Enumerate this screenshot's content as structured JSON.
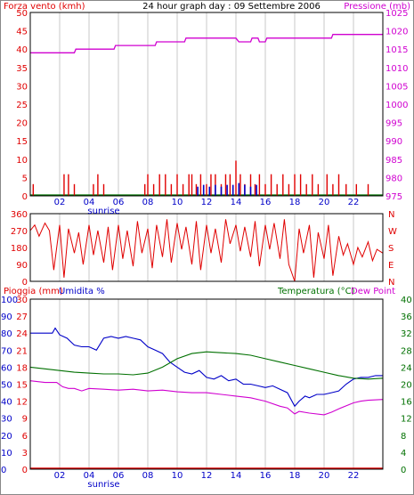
{
  "colors": {
    "red": "#e00000",
    "blue": "#0000c8",
    "magenta": "#d000d0",
    "green": "#007000",
    "grid": "#c8c8c8",
    "frame": "#000000",
    "rain": "#e00000"
  },
  "panel1": {
    "title": "24 hour graph day : 09 Settembre 2006",
    "left_label": "Forza vento (kmh)",
    "right_label": "Pressione (mb)"
  },
  "panel3": {
    "left_label_rain": "Pioggia (mm)",
    "left_label_hum": "Umidita %",
    "right_label_temp": "Temperatura (°C)",
    "right_label_dew": "Dew Point"
  },
  "sunrise_label": "sunrise",
  "chart_data": [
    {
      "type": "bar",
      "name": "wind-and-pressure",
      "x_ticks": [
        "02",
        "04",
        "06",
        "08",
        "10",
        "12",
        "14",
        "16",
        "18",
        "20",
        "22"
      ],
      "x_range_hours": [
        0,
        24
      ],
      "y_left": {
        "ticks": [
          0,
          5,
          10,
          15,
          20,
          25,
          30,
          35,
          40,
          45,
          50
        ],
        "range": [
          0,
          50
        ]
      },
      "y_right": {
        "ticks": [
          975,
          980,
          985,
          990,
          995,
          1000,
          1005,
          1010,
          1015,
          1020,
          1025
        ],
        "range": [
          975,
          1025
        ]
      },
      "sunrise_hour": 5.0,
      "wind_speed": [
        {
          "h": 0.2,
          "v": 3.2
        },
        {
          "h": 2.3,
          "v": 5.9
        },
        {
          "h": 2.6,
          "v": 5.9
        },
        {
          "h": 3.0,
          "v": 3.2
        },
        {
          "h": 4.3,
          "v": 3.2
        },
        {
          "h": 4.6,
          "v": 5.9
        },
        {
          "h": 5.0,
          "v": 3.2
        },
        {
          "h": 7.8,
          "v": 3.2
        },
        {
          "h": 8.0,
          "v": 5.9
        },
        {
          "h": 8.4,
          "v": 3.2
        },
        {
          "h": 8.8,
          "v": 5.9
        },
        {
          "h": 9.2,
          "v": 5.9
        },
        {
          "h": 9.6,
          "v": 3.2
        },
        {
          "h": 10.0,
          "v": 5.9
        },
        {
          "h": 10.4,
          "v": 3.2
        },
        {
          "h": 10.8,
          "v": 5.9
        },
        {
          "h": 11.0,
          "v": 5.9
        },
        {
          "h": 11.3,
          "v": 3.2
        },
        {
          "h": 11.6,
          "v": 5.9
        },
        {
          "h": 12.0,
          "v": 3.2
        },
        {
          "h": 12.3,
          "v": 5.9
        },
        {
          "h": 12.6,
          "v": 5.9
        },
        {
          "h": 13.0,
          "v": 3.2
        },
        {
          "h": 13.3,
          "v": 5.9
        },
        {
          "h": 13.6,
          "v": 5.9
        },
        {
          "h": 14.0,
          "v": 9.6
        },
        {
          "h": 14.3,
          "v": 5.9
        },
        {
          "h": 14.6,
          "v": 3.2
        },
        {
          "h": 15.0,
          "v": 5.9
        },
        {
          "h": 15.3,
          "v": 3.2
        },
        {
          "h": 15.6,
          "v": 5.9
        },
        {
          "h": 16.0,
          "v": 3.2
        },
        {
          "h": 16.4,
          "v": 5.9
        },
        {
          "h": 16.8,
          "v": 3.2
        },
        {
          "h": 17.2,
          "v": 5.9
        },
        {
          "h": 17.6,
          "v": 3.2
        },
        {
          "h": 18.0,
          "v": 5.9
        },
        {
          "h": 18.4,
          "v": 5.9
        },
        {
          "h": 18.8,
          "v": 3.2
        },
        {
          "h": 19.2,
          "v": 5.9
        },
        {
          "h": 19.6,
          "v": 3.2
        },
        {
          "h": 20.2,
          "v": 5.9
        },
        {
          "h": 20.6,
          "v": 3.2
        },
        {
          "h": 21.0,
          "v": 5.9
        },
        {
          "h": 21.5,
          "v": 3.2
        },
        {
          "h": 22.2,
          "v": 3.2
        },
        {
          "h": 23.0,
          "v": 3.2
        }
      ],
      "wind_gust": [
        {
          "h": 11.8,
          "v": 3.0
        },
        {
          "h": 12.2,
          "v": 2.5
        },
        {
          "h": 12.6,
          "v": 3.0
        },
        {
          "h": 13.0,
          "v": 2.5
        },
        {
          "h": 13.4,
          "v": 3.0
        },
        {
          "h": 13.8,
          "v": 3.0
        },
        {
          "h": 14.2,
          "v": 3.5
        },
        {
          "h": 14.6,
          "v": 3.0
        },
        {
          "h": 15.0,
          "v": 2.5
        },
        {
          "h": 15.4,
          "v": 3.0
        },
        {
          "h": 11.4,
          "v": 2.5
        }
      ],
      "pressure": [
        {
          "h": 0.0,
          "v": 1014
        },
        {
          "h": 3.0,
          "v": 1014
        },
        {
          "h": 3.1,
          "v": 1015
        },
        {
          "h": 5.7,
          "v": 1015
        },
        {
          "h": 5.8,
          "v": 1016
        },
        {
          "h": 8.5,
          "v": 1016
        },
        {
          "h": 8.6,
          "v": 1017
        },
        {
          "h": 10.5,
          "v": 1017
        },
        {
          "h": 10.6,
          "v": 1018
        },
        {
          "h": 14.0,
          "v": 1018
        },
        {
          "h": 14.2,
          "v": 1017
        },
        {
          "h": 15.0,
          "v": 1017
        },
        {
          "h": 15.1,
          "v": 1018
        },
        {
          "h": 15.5,
          "v": 1018
        },
        {
          "h": 15.6,
          "v": 1017
        },
        {
          "h": 16.0,
          "v": 1017
        },
        {
          "h": 16.1,
          "v": 1018
        },
        {
          "h": 20.5,
          "v": 1018
        },
        {
          "h": 20.6,
          "v": 1019
        },
        {
          "h": 24.0,
          "v": 1019
        }
      ]
    },
    {
      "type": "line",
      "name": "wind-direction",
      "y_ticks_left": [
        0,
        90,
        180,
        270,
        360
      ],
      "y_range": [
        0,
        360
      ],
      "y_right_labels": [
        "N",
        "W",
        "S",
        "E",
        "N"
      ],
      "direction": [
        {
          "h": 0.0,
          "v": 270
        },
        {
          "h": 0.3,
          "v": 300
        },
        {
          "h": 0.6,
          "v": 240
        },
        {
          "h": 1.0,
          "v": 310
        },
        {
          "h": 1.3,
          "v": 270
        },
        {
          "h": 1.6,
          "v": 60
        },
        {
          "h": 2.0,
          "v": 300
        },
        {
          "h": 2.3,
          "v": 20
        },
        {
          "h": 2.6,
          "v": 280
        },
        {
          "h": 3.0,
          "v": 150
        },
        {
          "h": 3.3,
          "v": 260
        },
        {
          "h": 3.6,
          "v": 90
        },
        {
          "h": 4.0,
          "v": 300
        },
        {
          "h": 4.3,
          "v": 140
        },
        {
          "h": 4.6,
          "v": 270
        },
        {
          "h": 5.0,
          "v": 100
        },
        {
          "h": 5.3,
          "v": 290
        },
        {
          "h": 5.6,
          "v": 60
        },
        {
          "h": 6.0,
          "v": 300
        },
        {
          "h": 6.3,
          "v": 120
        },
        {
          "h": 6.6,
          "v": 270
        },
        {
          "h": 7.0,
          "v": 80
        },
        {
          "h": 7.3,
          "v": 320
        },
        {
          "h": 7.6,
          "v": 150
        },
        {
          "h": 8.0,
          "v": 280
        },
        {
          "h": 8.3,
          "v": 70
        },
        {
          "h": 8.6,
          "v": 300
        },
        {
          "h": 9.0,
          "v": 130
        },
        {
          "h": 9.3,
          "v": 330
        },
        {
          "h": 9.6,
          "v": 100
        },
        {
          "h": 10.0,
          "v": 310
        },
        {
          "h": 10.3,
          "v": 170
        },
        {
          "h": 10.6,
          "v": 290
        },
        {
          "h": 11.0,
          "v": 90
        },
        {
          "h": 11.3,
          "v": 320
        },
        {
          "h": 11.6,
          "v": 60
        },
        {
          "h": 12.0,
          "v": 300
        },
        {
          "h": 12.3,
          "v": 150
        },
        {
          "h": 12.6,
          "v": 280
        },
        {
          "h": 13.0,
          "v": 100
        },
        {
          "h": 13.3,
          "v": 330
        },
        {
          "h": 13.6,
          "v": 200
        },
        {
          "h": 14.0,
          "v": 300
        },
        {
          "h": 14.3,
          "v": 160
        },
        {
          "h": 14.6,
          "v": 290
        },
        {
          "h": 15.0,
          "v": 130
        },
        {
          "h": 15.3,
          "v": 320
        },
        {
          "h": 15.6,
          "v": 80
        },
        {
          "h": 16.0,
          "v": 300
        },
        {
          "h": 16.3,
          "v": 170
        },
        {
          "h": 16.6,
          "v": 310
        },
        {
          "h": 17.0,
          "v": 120
        },
        {
          "h": 17.3,
          "v": 330
        },
        {
          "h": 17.6,
          "v": 90
        },
        {
          "h": 18.0,
          "v": 0
        },
        {
          "h": 18.3,
          "v": 280
        },
        {
          "h": 18.6,
          "v": 150
        },
        {
          "h": 19.0,
          "v": 300
        },
        {
          "h": 19.3,
          "v": 20
        },
        {
          "h": 19.6,
          "v": 260
        },
        {
          "h": 20.0,
          "v": 120
        },
        {
          "h": 20.3,
          "v": 300
        },
        {
          "h": 20.6,
          "v": 30
        },
        {
          "h": 21.0,
          "v": 240
        },
        {
          "h": 21.3,
          "v": 140
        },
        {
          "h": 21.6,
          "v": 200
        },
        {
          "h": 22.0,
          "v": 90
        },
        {
          "h": 22.3,
          "v": 180
        },
        {
          "h": 22.6,
          "v": 130
        },
        {
          "h": 23.0,
          "v": 210
        },
        {
          "h": 23.3,
          "v": 110
        },
        {
          "h": 23.6,
          "v": 170
        },
        {
          "h": 24.0,
          "v": 150
        }
      ]
    },
    {
      "type": "line",
      "name": "rain-humidity-temperature",
      "x_ticks": [
        "02",
        "04",
        "06",
        "08",
        "10",
        "12",
        "14",
        "16",
        "18",
        "20",
        "22"
      ],
      "x_range_hours": [
        0,
        24
      ],
      "y_rain": {
        "ticks": [
          0,
          3,
          6,
          9,
          12,
          15,
          18,
          21,
          24,
          27,
          30
        ],
        "range": [
          0,
          30
        ]
      },
      "y_humidity": {
        "ticks": [
          0,
          10,
          20,
          30,
          40,
          50,
          60,
          70,
          80,
          90,
          100
        ],
        "range": [
          0,
          100
        ]
      },
      "y_temp": {
        "ticks": [
          0,
          4,
          8,
          12,
          16,
          20,
          24,
          28,
          32,
          36,
          40
        ],
        "range": [
          0,
          40
        ]
      },
      "sunrise_hour": 5.0,
      "rain": [
        {
          "h": 0.0,
          "v": 0
        },
        {
          "h": 24.0,
          "v": 0
        }
      ],
      "humidity": [
        {
          "h": 0.0,
          "v": 80
        },
        {
          "h": 1.5,
          "v": 80
        },
        {
          "h": 1.7,
          "v": 83
        },
        {
          "h": 2.0,
          "v": 79
        },
        {
          "h": 2.5,
          "v": 77
        },
        {
          "h": 3.0,
          "v": 73
        },
        {
          "h": 3.5,
          "v": 72
        },
        {
          "h": 4.0,
          "v": 72
        },
        {
          "h": 4.5,
          "v": 70
        },
        {
          "h": 5.0,
          "v": 77
        },
        {
          "h": 5.5,
          "v": 78
        },
        {
          "h": 6.0,
          "v": 77
        },
        {
          "h": 6.5,
          "v": 78
        },
        {
          "h": 7.0,
          "v": 77
        },
        {
          "h": 7.5,
          "v": 76
        },
        {
          "h": 8.0,
          "v": 72
        },
        {
          "h": 8.5,
          "v": 70
        },
        {
          "h": 9.0,
          "v": 68
        },
        {
          "h": 9.5,
          "v": 63
        },
        {
          "h": 10.0,
          "v": 60
        },
        {
          "h": 10.5,
          "v": 57
        },
        {
          "h": 11.0,
          "v": 56
        },
        {
          "h": 11.5,
          "v": 58
        },
        {
          "h": 12.0,
          "v": 54
        },
        {
          "h": 12.5,
          "v": 53
        },
        {
          "h": 13.0,
          "v": 55
        },
        {
          "h": 13.5,
          "v": 52
        },
        {
          "h": 14.0,
          "v": 53
        },
        {
          "h": 14.5,
          "v": 50
        },
        {
          "h": 15.0,
          "v": 50
        },
        {
          "h": 15.5,
          "v": 49
        },
        {
          "h": 16.0,
          "v": 48
        },
        {
          "h": 16.5,
          "v": 49
        },
        {
          "h": 17.0,
          "v": 47
        },
        {
          "h": 17.5,
          "v": 45
        },
        {
          "h": 18.0,
          "v": 37
        },
        {
          "h": 18.3,
          "v": 40
        },
        {
          "h": 18.7,
          "v": 43
        },
        {
          "h": 19.0,
          "v": 42
        },
        {
          "h": 19.5,
          "v": 44
        },
        {
          "h": 20.0,
          "v": 44
        },
        {
          "h": 20.5,
          "v": 45
        },
        {
          "h": 21.0,
          "v": 46
        },
        {
          "h": 21.5,
          "v": 50
        },
        {
          "h": 22.0,
          "v": 53
        },
        {
          "h": 22.5,
          "v": 54
        },
        {
          "h": 23.0,
          "v": 54
        },
        {
          "h": 23.5,
          "v": 55
        },
        {
          "h": 24.0,
          "v": 55
        }
      ],
      "temperature": [
        {
          "h": 0.0,
          "v": 24.0
        },
        {
          "h": 1.0,
          "v": 23.6
        },
        {
          "h": 2.0,
          "v": 23.2
        },
        {
          "h": 3.0,
          "v": 22.8
        },
        {
          "h": 4.0,
          "v": 22.6
        },
        {
          "h": 5.0,
          "v": 22.4
        },
        {
          "h": 6.0,
          "v": 22.4
        },
        {
          "h": 7.0,
          "v": 22.2
        },
        {
          "h": 8.0,
          "v": 22.6
        },
        {
          "h": 9.0,
          "v": 24.0
        },
        {
          "h": 10.0,
          "v": 26.0
        },
        {
          "h": 11.0,
          "v": 27.2
        },
        {
          "h": 12.0,
          "v": 27.6
        },
        {
          "h": 13.0,
          "v": 27.4
        },
        {
          "h": 14.0,
          "v": 27.2
        },
        {
          "h": 15.0,
          "v": 26.8
        },
        {
          "h": 16.0,
          "v": 26.0
        },
        {
          "h": 17.0,
          "v": 25.2
        },
        {
          "h": 18.0,
          "v": 24.4
        },
        {
          "h": 19.0,
          "v": 23.6
        },
        {
          "h": 20.0,
          "v": 22.8
        },
        {
          "h": 21.0,
          "v": 22.0
        },
        {
          "h": 22.0,
          "v": 21.4
        },
        {
          "h": 23.0,
          "v": 21.2
        },
        {
          "h": 24.0,
          "v": 21.4
        }
      ],
      "dew_point": [
        {
          "h": 0.0,
          "v": 20.8
        },
        {
          "h": 1.0,
          "v": 20.4
        },
        {
          "h": 1.8,
          "v": 20.4
        },
        {
          "h": 2.2,
          "v": 19.4
        },
        {
          "h": 2.6,
          "v": 19.0
        },
        {
          "h": 3.0,
          "v": 19.0
        },
        {
          "h": 3.5,
          "v": 18.4
        },
        {
          "h": 4.0,
          "v": 19.0
        },
        {
          "h": 5.0,
          "v": 18.8
        },
        {
          "h": 6.0,
          "v": 18.6
        },
        {
          "h": 7.0,
          "v": 18.8
        },
        {
          "h": 8.0,
          "v": 18.4
        },
        {
          "h": 9.0,
          "v": 18.6
        },
        {
          "h": 10.0,
          "v": 18.2
        },
        {
          "h": 11.0,
          "v": 18.0
        },
        {
          "h": 12.0,
          "v": 18.0
        },
        {
          "h": 13.0,
          "v": 17.6
        },
        {
          "h": 14.0,
          "v": 17.2
        },
        {
          "h": 15.0,
          "v": 16.8
        },
        {
          "h": 16.0,
          "v": 16.0
        },
        {
          "h": 17.0,
          "v": 14.8
        },
        {
          "h": 17.5,
          "v": 14.4
        },
        {
          "h": 18.0,
          "v": 13.0
        },
        {
          "h": 18.3,
          "v": 13.6
        },
        {
          "h": 19.0,
          "v": 13.2
        },
        {
          "h": 20.0,
          "v": 12.8
        },
        {
          "h": 20.5,
          "v": 13.4
        },
        {
          "h": 21.0,
          "v": 14.2
        },
        {
          "h": 22.0,
          "v": 15.6
        },
        {
          "h": 22.5,
          "v": 16.0
        },
        {
          "h": 23.0,
          "v": 16.2
        },
        {
          "h": 24.0,
          "v": 16.4
        }
      ]
    }
  ]
}
